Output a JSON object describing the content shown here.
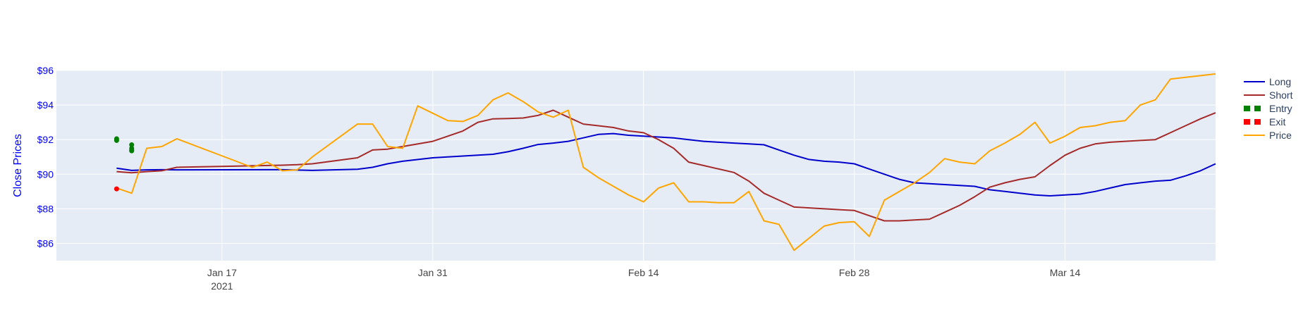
{
  "chart_data": {
    "type": "line",
    "ylabel": "Close Prices",
    "ylim": [
      85,
      96
    ],
    "xlim": [
      "2021-01-06",
      "2021-03-24"
    ],
    "y_ticks": [
      86,
      88,
      90,
      92,
      94,
      96
    ],
    "y_tick_labels": [
      "$86",
      "$88",
      "$90",
      "$92",
      "$94",
      "$96"
    ],
    "x_ticks": [
      "2021-01-17",
      "2021-01-31",
      "2021-02-14",
      "2021-02-28",
      "2021-03-14"
    ],
    "x_tick_labels": [
      "Jan 17",
      "Jan 31",
      "Feb 14",
      "Feb 28",
      "Mar 14"
    ],
    "x_year_label": "2021",
    "grid": true,
    "legend_position": "top-right",
    "colors": {
      "plot_bg": "#e5ecf6",
      "grid": "#ffffff",
      "axis_label": "#0000ff",
      "long": "#0000cd",
      "short": "#a52a2a",
      "entry": "#008000",
      "exit": "#ff0000",
      "price": "#ffa500"
    },
    "series": [
      {
        "name": "Long",
        "kind": "line",
        "x": [
          "2021-01-10",
          "2021-01-11",
          "2021-01-12",
          "2021-01-13",
          "2021-01-14",
          "2021-01-21",
          "2021-01-22",
          "2021-01-23",
          "2021-01-26",
          "2021-01-27",
          "2021-01-28",
          "2021-01-29",
          "2021-01-31",
          "2021-02-01",
          "2021-02-02",
          "2021-02-03",
          "2021-02-04",
          "2021-02-05",
          "2021-02-06",
          "2021-02-07",
          "2021-02-08",
          "2021-02-09",
          "2021-02-10",
          "2021-02-11",
          "2021-02-12",
          "2021-02-13",
          "2021-02-14",
          "2021-02-15",
          "2021-02-16",
          "2021-02-17",
          "2021-02-18",
          "2021-02-19",
          "2021-02-20",
          "2021-02-21",
          "2021-02-22",
          "2021-02-23",
          "2021-02-24",
          "2021-02-25",
          "2021-02-26",
          "2021-02-27",
          "2021-02-28",
          "2021-03-01",
          "2021-03-02",
          "2021-03-03",
          "2021-03-04",
          "2021-03-05",
          "2021-03-06",
          "2021-03-07",
          "2021-03-08",
          "2021-03-09",
          "2021-03-10",
          "2021-03-11",
          "2021-03-12",
          "2021-03-13",
          "2021-03-14",
          "2021-03-15",
          "2021-03-16",
          "2021-03-17",
          "2021-03-18",
          "2021-03-19",
          "2021-03-20",
          "2021-03-21",
          "2021-03-22",
          "2021-03-23",
          "2021-03-24"
        ],
        "y": [
          90.35,
          90.22,
          90.25,
          90.26,
          90.25,
          90.26,
          90.24,
          90.22,
          90.29,
          90.4,
          90.6,
          90.75,
          90.95,
          91.0,
          91.05,
          91.1,
          91.15,
          91.3,
          91.5,
          91.72,
          91.8,
          91.9,
          92.1,
          92.3,
          92.35,
          92.25,
          92.2,
          92.15,
          92.1,
          92.0,
          91.9,
          91.85,
          91.8,
          91.75,
          91.7,
          91.4,
          91.1,
          90.85,
          90.75,
          90.7,
          90.6,
          90.3,
          90.0,
          89.7,
          89.5,
          89.45,
          89.4,
          89.35,
          89.3,
          89.1,
          89.0,
          88.9,
          88.8,
          88.75,
          88.8,
          88.85,
          89.0,
          89.2,
          89.4,
          89.5,
          89.6,
          89.65,
          89.9,
          90.2,
          90.6
        ]
      },
      {
        "name": "Short",
        "kind": "line",
        "x": [
          "2021-01-10",
          "2021-01-11",
          "2021-01-12",
          "2021-01-13",
          "2021-01-14",
          "2021-01-21",
          "2021-01-22",
          "2021-01-23",
          "2021-01-26",
          "2021-01-27",
          "2021-01-28",
          "2021-01-29",
          "2021-01-31",
          "2021-02-01",
          "2021-02-02",
          "2021-02-03",
          "2021-02-04",
          "2021-02-05",
          "2021-02-06",
          "2021-02-07",
          "2021-02-08",
          "2021-02-09",
          "2021-02-10",
          "2021-02-11",
          "2021-02-12",
          "2021-02-13",
          "2021-02-14",
          "2021-02-15",
          "2021-02-16",
          "2021-02-17",
          "2021-02-18",
          "2021-02-19",
          "2021-02-20",
          "2021-02-21",
          "2021-02-22",
          "2021-02-23",
          "2021-02-24",
          "2021-02-25",
          "2021-02-26",
          "2021-02-27",
          "2021-02-28",
          "2021-03-01",
          "2021-03-02",
          "2021-03-03",
          "2021-03-04",
          "2021-03-05",
          "2021-03-06",
          "2021-03-07",
          "2021-03-08",
          "2021-03-09",
          "2021-03-10",
          "2021-03-11",
          "2021-03-12",
          "2021-03-13",
          "2021-03-14",
          "2021-03-15",
          "2021-03-16",
          "2021-03-17",
          "2021-03-18",
          "2021-03-19",
          "2021-03-20",
          "2021-03-21",
          "2021-03-22",
          "2021-03-23",
          "2021-03-24"
        ],
        "y": [
          90.15,
          90.08,
          90.15,
          90.2,
          90.4,
          90.52,
          90.55,
          90.6,
          90.95,
          91.4,
          91.45,
          91.6,
          91.9,
          92.2,
          92.5,
          93.0,
          93.2,
          93.22,
          93.25,
          93.4,
          93.7,
          93.3,
          92.9,
          92.8,
          92.7,
          92.5,
          92.4,
          92.0,
          91.5,
          90.7,
          90.5,
          90.3,
          90.1,
          89.6,
          88.9,
          88.5,
          88.1,
          88.05,
          88.0,
          87.95,
          87.9,
          87.6,
          87.3,
          87.3,
          87.35,
          87.4,
          87.8,
          88.2,
          88.7,
          89.25,
          89.5,
          89.7,
          89.85,
          90.5,
          91.1,
          91.5,
          91.75,
          91.85,
          91.9,
          91.95,
          92.0,
          92.4,
          92.8,
          93.2,
          93.55
        ]
      },
      {
        "name": "Entry",
        "kind": "markers",
        "x": [
          "2021-01-10",
          "2021-01-10",
          "2021-01-11",
          "2021-01-11",
          "2021-01-11",
          "2021-01-11"
        ],
        "y": [
          92.05,
          91.95,
          91.7,
          91.5,
          91.4,
          91.35
        ]
      },
      {
        "name": "Exit",
        "kind": "markers",
        "x": [
          "2021-01-10"
        ],
        "y": [
          89.15
        ]
      },
      {
        "name": "Price",
        "kind": "line",
        "x": [
          "2021-01-10",
          "2021-01-11",
          "2021-01-12",
          "2021-01-13",
          "2021-01-14",
          "2021-01-19",
          "2021-01-20",
          "2021-01-21",
          "2021-01-22",
          "2021-01-23",
          "2021-01-26",
          "2021-01-27",
          "2021-01-28",
          "2021-01-29",
          "2021-01-30",
          "2021-02-01",
          "2021-02-02",
          "2021-02-03",
          "2021-02-04",
          "2021-02-05",
          "2021-02-06",
          "2021-02-07",
          "2021-02-08",
          "2021-02-09",
          "2021-02-10",
          "2021-02-11",
          "2021-02-12",
          "2021-02-13",
          "2021-02-14",
          "2021-02-15",
          "2021-02-16",
          "2021-02-17",
          "2021-02-18",
          "2021-02-19",
          "2021-02-20",
          "2021-02-21",
          "2021-02-22",
          "2021-02-23",
          "2021-02-24",
          "2021-02-25",
          "2021-02-26",
          "2021-02-27",
          "2021-02-28",
          "2021-03-01",
          "2021-03-02",
          "2021-03-03",
          "2021-03-04",
          "2021-03-05",
          "2021-03-06",
          "2021-03-07",
          "2021-03-08",
          "2021-03-09",
          "2021-03-10",
          "2021-03-11",
          "2021-03-12",
          "2021-03-13",
          "2021-03-14",
          "2021-03-15",
          "2021-03-16",
          "2021-03-17",
          "2021-03-18",
          "2021-03-19",
          "2021-03-20",
          "2021-03-21",
          "2021-03-22",
          "2021-03-23",
          "2021-03-24"
        ],
        "y": [
          89.2,
          88.9,
          91.5,
          91.6,
          92.05,
          90.4,
          90.7,
          90.2,
          90.25,
          91.0,
          92.9,
          92.9,
          91.6,
          91.5,
          93.95,
          93.1,
          93.05,
          93.4,
          94.3,
          94.7,
          94.2,
          93.6,
          93.3,
          93.7,
          90.4,
          89.8,
          89.3,
          88.8,
          88.4,
          89.2,
          89.5,
          88.4,
          88.4,
          88.35,
          88.35,
          89.0,
          87.3,
          87.1,
          85.6,
          86.3,
          87.0,
          87.2,
          87.25,
          86.4,
          88.5,
          89.0,
          89.5,
          90.1,
          90.9,
          90.7,
          90.6,
          91.35,
          91.8,
          92.3,
          93.0,
          91.8,
          92.2,
          92.7,
          92.8,
          93.0,
          93.1,
          94.0,
          94.3,
          95.5,
          95.6,
          95.7,
          95.8
        ]
      }
    ]
  }
}
